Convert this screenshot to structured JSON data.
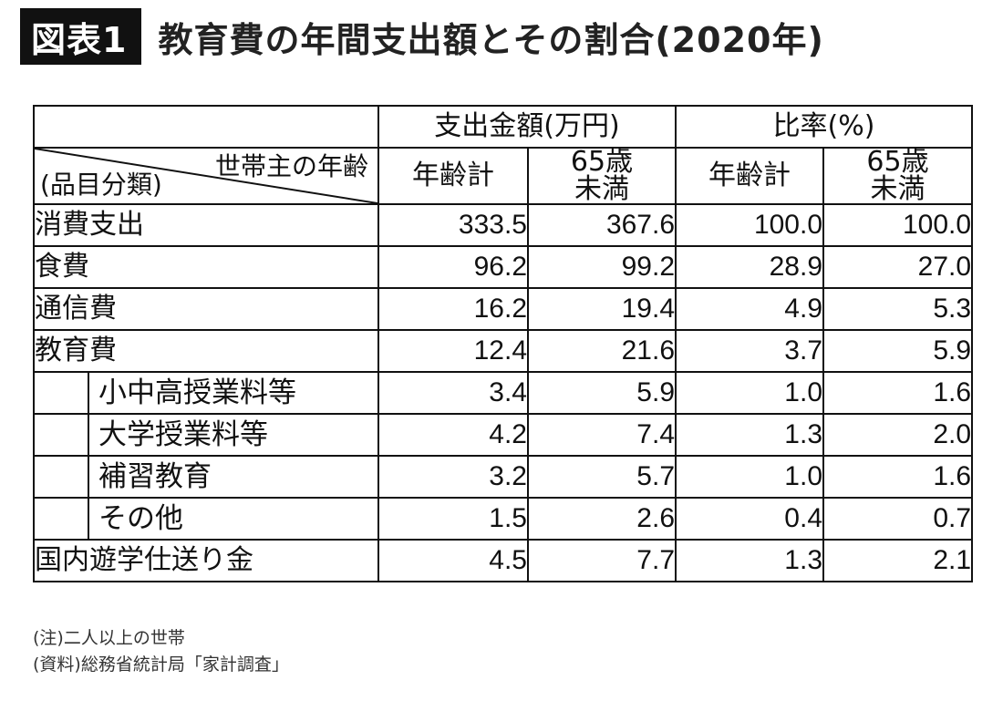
{
  "header": {
    "badge": "図表1",
    "title": "教育費の年間支出額とその割合(2020年)"
  },
  "table": {
    "group_headers": [
      "支出金額(万円)",
      "比率(%)"
    ],
    "corner_top": "世帯主の年齢",
    "corner_bottom": "(品目分類)",
    "sub_headers": [
      [
        "年齢計"
      ],
      [
        "65歳",
        "未満"
      ],
      [
        "年齢計"
      ],
      [
        "65歳",
        "未満"
      ]
    ],
    "rows": [
      {
        "label": "消費支出",
        "values": [
          "333.5",
          "367.6",
          "100.0",
          "100.0"
        ]
      },
      {
        "label": "食費",
        "values": [
          "96.2",
          "99.2",
          "28.9",
          "27.0"
        ]
      },
      {
        "label": "通信費",
        "values": [
          "16.2",
          "19.4",
          "4.9",
          "5.3"
        ]
      },
      {
        "label": "教育費",
        "values": [
          "12.4",
          "21.6",
          "3.7",
          "5.9"
        ]
      }
    ],
    "sub_rows": [
      {
        "label": "小中高授業料等",
        "values": [
          "3.4",
          "5.9",
          "1.0",
          "1.6"
        ]
      },
      {
        "label": "大学授業料等",
        "values": [
          "4.2",
          "7.4",
          "1.3",
          "2.0"
        ]
      },
      {
        "label": "補習教育",
        "values": [
          "3.2",
          "5.7",
          "1.0",
          "1.6"
        ]
      },
      {
        "label": "その他",
        "values": [
          "1.5",
          "2.6",
          "0.4",
          "0.7"
        ]
      }
    ],
    "last_row": {
      "label": "国内遊学仕送り金",
      "values": [
        "4.5",
        "7.7",
        "1.3",
        "2.1"
      ]
    }
  },
  "notes": [
    "(注)二人以上の世帯",
    "(資料)総務省統計局「家計調査」"
  ]
}
